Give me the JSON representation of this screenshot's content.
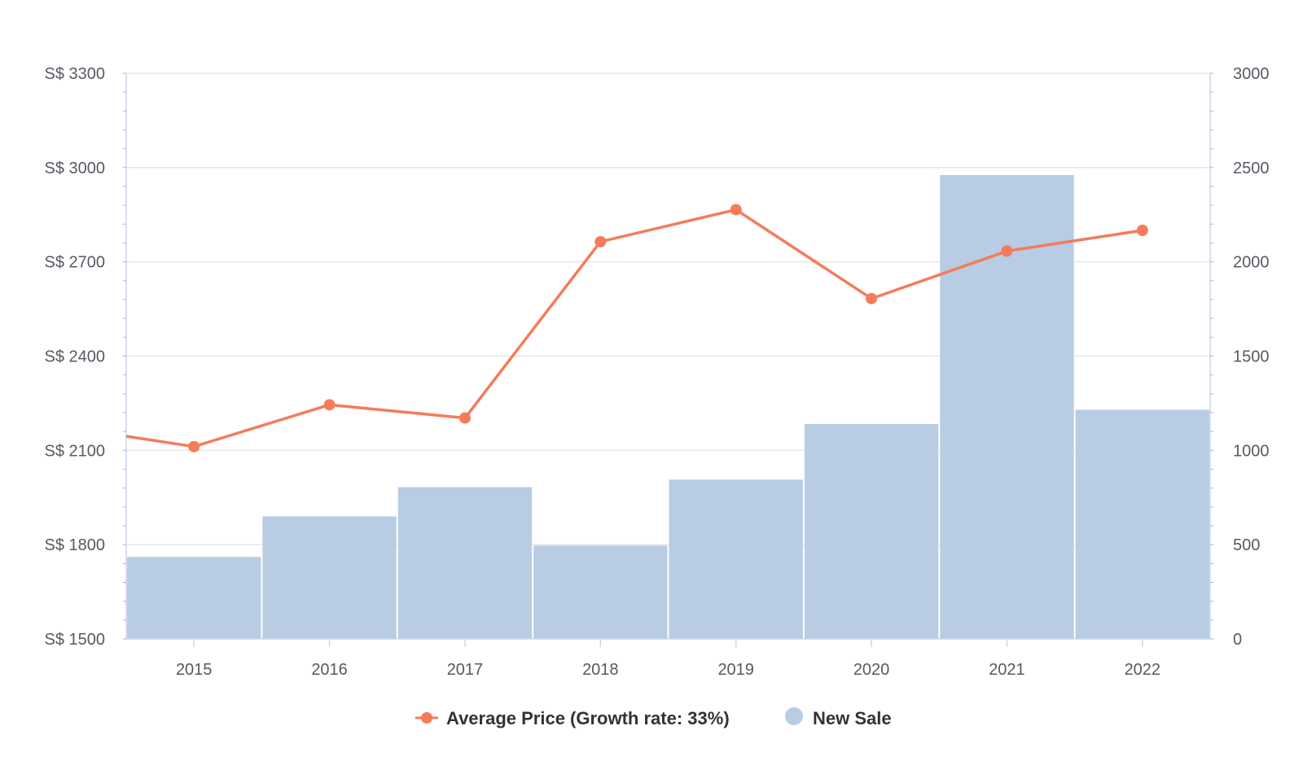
{
  "chart_data": {
    "type": "bar",
    "categories": [
      "2015",
      "2016",
      "2017",
      "2018",
      "2019",
      "2020",
      "2021",
      "2022"
    ],
    "series": [
      {
        "name": "Average Price (Growth rate: 33%)",
        "type": "line",
        "axis": "left",
        "color": "#f47c5a",
        "values": [
          2112,
          2245,
          2203,
          2764,
          2866,
          2583,
          2734,
          2800
        ]
      },
      {
        "name": "New Sale",
        "type": "bar",
        "axis": "right",
        "color": "#b8cce4",
        "values": [
          435,
          650,
          805,
          495,
          845,
          1140,
          2460,
          1215
        ]
      }
    ],
    "line_left_edge_value": 2145,
    "y_left": {
      "ticks": [
        "S$ 3300",
        "S$ 3000",
        "S$ 2700",
        "S$ 2400",
        "S$ 2100",
        "S$ 1800",
        "S$ 1500"
      ],
      "range": [
        1500,
        3300
      ]
    },
    "y_right": {
      "ticks": [
        "3000",
        "2500",
        "2000",
        "1500",
        "1000",
        "500",
        "0"
      ],
      "range": [
        0,
        3000
      ]
    },
    "grid": true,
    "legend": "bottom-center"
  }
}
